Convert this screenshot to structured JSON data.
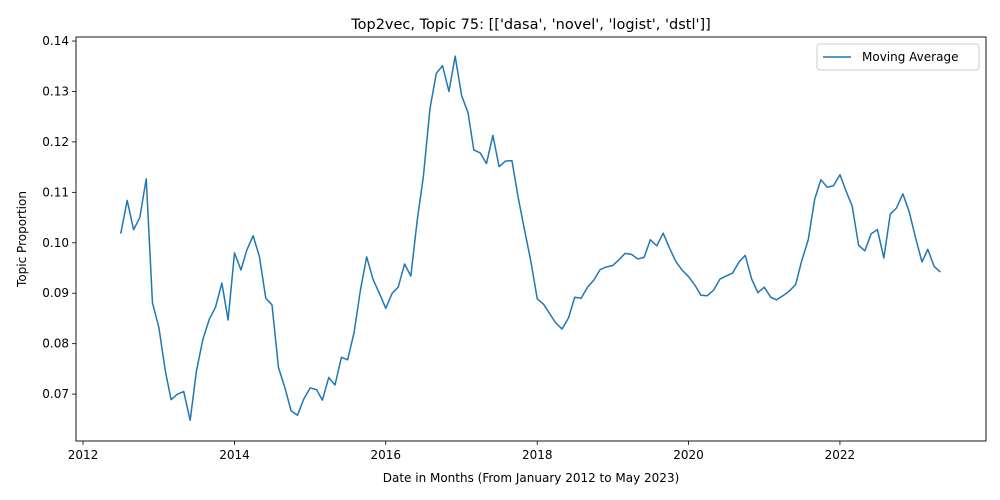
{
  "chart_data": {
    "type": "line",
    "title": "Top2vec, Topic 75: [['dasa', 'novel', 'logist', 'dstl']]",
    "xlabel": "Date in Months (From January 2012 to May 2023)",
    "ylabel": "Topic Proportion",
    "xlim": [
      "2011-11-28",
      "2023-12-07"
    ],
    "ylim": [
      0.0607,
      0.1408
    ],
    "x_ticks": [
      {
        "value": "2012-01-01",
        "label": "2012"
      },
      {
        "value": "2014-01-01",
        "label": "2014"
      },
      {
        "value": "2016-01-01",
        "label": "2016"
      },
      {
        "value": "2018-01-01",
        "label": "2018"
      },
      {
        "value": "2020-01-01",
        "label": "2020"
      },
      {
        "value": "2022-01-01",
        "label": "2022"
      }
    ],
    "y_ticks": [
      {
        "value": 0.07,
        "label": "0.07"
      },
      {
        "value": 0.08,
        "label": "0.08"
      },
      {
        "value": 0.09,
        "label": "0.09"
      },
      {
        "value": 0.1,
        "label": "0.10"
      },
      {
        "value": 0.11,
        "label": "0.11"
      },
      {
        "value": 0.12,
        "label": "0.12"
      },
      {
        "value": 0.13,
        "label": "0.13"
      },
      {
        "value": 0.14,
        "label": "0.14"
      }
    ],
    "legend": {
      "position": "top-right"
    },
    "grid": false,
    "series": [
      {
        "name": "Moving Average",
        "color": "#1f77b4",
        "x": [
          "2012-07",
          "2012-08",
          "2012-09",
          "2012-10",
          "2012-11",
          "2012-12",
          "2013-01",
          "2013-02",
          "2013-03",
          "2013-04",
          "2013-05",
          "2013-06",
          "2013-07",
          "2013-08",
          "2013-09",
          "2013-10",
          "2013-11",
          "2013-12",
          "2014-01",
          "2014-02",
          "2014-03",
          "2014-04",
          "2014-05",
          "2014-06",
          "2014-07",
          "2014-08",
          "2014-09",
          "2014-10",
          "2014-11",
          "2014-12",
          "2015-01",
          "2015-02",
          "2015-03",
          "2015-04",
          "2015-05",
          "2015-06",
          "2015-07",
          "2015-08",
          "2015-09",
          "2015-10",
          "2015-11",
          "2015-12",
          "2016-01",
          "2016-02",
          "2016-03",
          "2016-04",
          "2016-05",
          "2016-06",
          "2016-07",
          "2016-08",
          "2016-09",
          "2016-10",
          "2016-11",
          "2016-12",
          "2017-01",
          "2017-02",
          "2017-03",
          "2017-04",
          "2017-05",
          "2017-06",
          "2017-07",
          "2017-08",
          "2017-09",
          "2017-10",
          "2017-11",
          "2017-12",
          "2018-01",
          "2018-02",
          "2018-03",
          "2018-04",
          "2018-05",
          "2018-06",
          "2018-07",
          "2018-08",
          "2018-09",
          "2018-10",
          "2018-11",
          "2018-12",
          "2019-01",
          "2019-02",
          "2019-03",
          "2019-04",
          "2019-05",
          "2019-06",
          "2019-07",
          "2019-08",
          "2019-09",
          "2019-10",
          "2019-11",
          "2019-12",
          "2020-01",
          "2020-02",
          "2020-03",
          "2020-04",
          "2020-05",
          "2020-06",
          "2020-07",
          "2020-08",
          "2020-09",
          "2020-10",
          "2020-11",
          "2020-12",
          "2021-01",
          "2021-02",
          "2021-03",
          "2021-04",
          "2021-05",
          "2021-06",
          "2021-07",
          "2021-08",
          "2021-09",
          "2021-10",
          "2021-11",
          "2021-12",
          "2022-01",
          "2022-02",
          "2022-03",
          "2022-04",
          "2022-05",
          "2022-06",
          "2022-07",
          "2022-08",
          "2022-09",
          "2022-10",
          "2022-11",
          "2022-12",
          "2023-01",
          "2023-02",
          "2023-03",
          "2023-04",
          "2023-05"
        ],
        "y": [
          0.1018,
          0.1084,
          0.1026,
          0.105,
          0.1127,
          0.0881,
          0.0832,
          0.0746,
          0.0689,
          0.07,
          0.0705,
          0.0648,
          0.0745,
          0.0808,
          0.0848,
          0.0872,
          0.092,
          0.0847,
          0.098,
          0.0946,
          0.0985,
          0.1014,
          0.0973,
          0.089,
          0.0877,
          0.0753,
          0.0713,
          0.0667,
          0.0658,
          0.069,
          0.0712,
          0.0709,
          0.0688,
          0.0733,
          0.0718,
          0.0773,
          0.0768,
          0.0822,
          0.0907,
          0.0972,
          0.0927,
          0.09,
          0.087,
          0.09,
          0.0912,
          0.0958,
          0.0934,
          0.1045,
          0.1133,
          0.1265,
          0.1336,
          0.1351,
          0.13,
          0.137,
          0.1292,
          0.1258,
          0.1184,
          0.1178,
          0.1157,
          0.1213,
          0.1151,
          0.1162,
          0.1163,
          0.109,
          0.1025,
          0.0964,
          0.0889,
          0.0878,
          0.086,
          0.0841,
          0.0829,
          0.0851,
          0.0892,
          0.089,
          0.0912,
          0.0926,
          0.0947,
          0.0952,
          0.0955,
          0.0967,
          0.0979,
          0.0977,
          0.0968,
          0.0971,
          0.1006,
          0.0994,
          0.1019,
          0.099,
          0.0963,
          0.0946,
          0.0933,
          0.0916,
          0.0896,
          0.0895,
          0.0906,
          0.0928,
          0.0934,
          0.094,
          0.0962,
          0.0975,
          0.0928,
          0.0901,
          0.0912,
          0.0892,
          0.0887,
          0.0895,
          0.0904,
          0.0917,
          0.0965,
          0.1006,
          0.1086,
          0.1125,
          0.111,
          0.1113,
          0.1135,
          0.1101,
          0.1073,
          0.0995,
          0.0984,
          0.1018,
          0.1026,
          0.097,
          0.1057,
          0.1069,
          0.1097,
          0.1062,
          0.101,
          0.0962,
          0.0987,
          0.0953,
          0.0942
        ]
      }
    ]
  }
}
